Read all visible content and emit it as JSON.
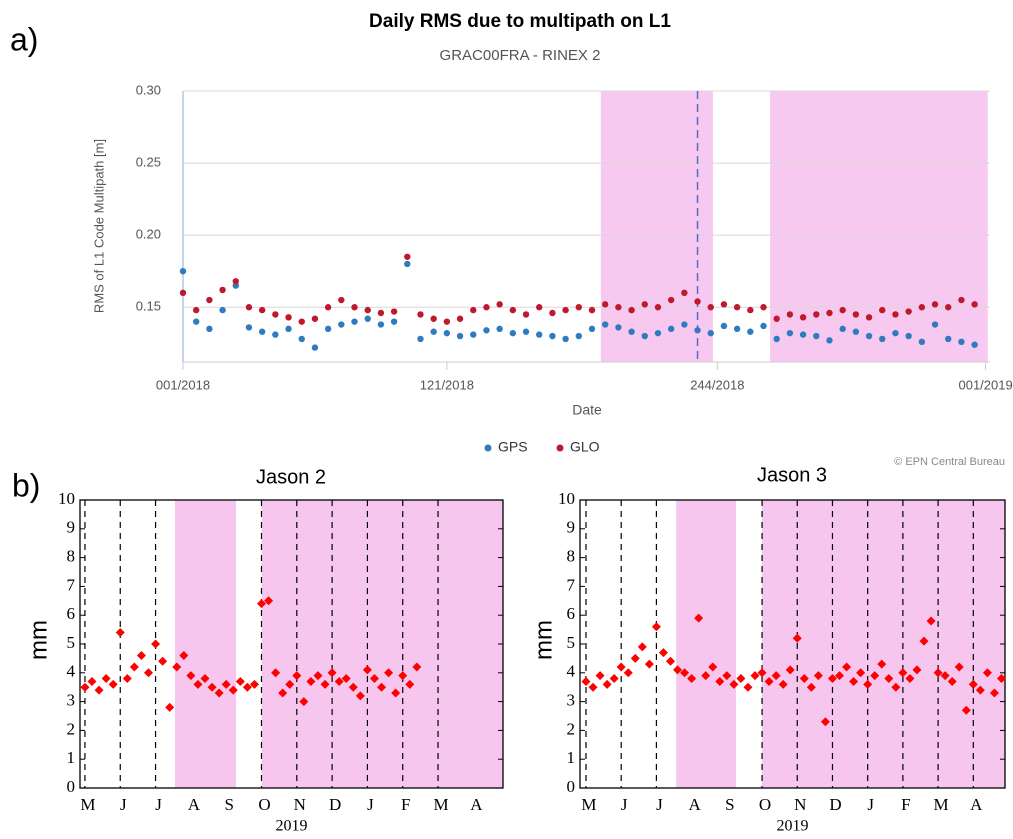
{
  "panel_labels": [
    "a)",
    "b)"
  ],
  "chart_data": [
    {
      "type": "scatter",
      "title": "Daily RMS due to multipath on L1",
      "subtitle": "GRAC00FRA - RINEX 2",
      "xlabel": "Date",
      "ylabel": "RMS of L1 Code Multipath [m]",
      "credit": "© EPN Central Bureau",
      "frame": false,
      "grid": true,
      "marker": "circle",
      "xlim": [
        0,
        367
      ],
      "ylim": [
        0.112,
        0.3
      ],
      "xticks": [
        {
          "value": 0,
          "label": "001/2018"
        },
        {
          "value": 120,
          "label": "121/2018"
        },
        {
          "value": 243,
          "label": "244/2018"
        },
        {
          "value": 365,
          "label": "001/2019"
        }
      ],
      "yticks": [
        0.15,
        {
          "value": 0.2,
          "label": "0.20"
        },
        0.25,
        {
          "value": 0.3,
          "label": "0.30"
        }
      ],
      "shaded_ranges": [
        [
          190,
          241
        ],
        [
          267,
          366
        ]
      ],
      "shade_color": "#f8c9f0",
      "vlines": [
        234
      ],
      "vline_color": "#4a6fc4",
      "x": [
        0,
        6,
        12,
        18,
        24,
        30,
        36,
        42,
        48,
        54,
        60,
        66,
        72,
        78,
        84,
        90,
        96,
        102,
        108,
        114,
        120,
        126,
        132,
        138,
        144,
        150,
        156,
        162,
        168,
        174,
        180,
        186,
        192,
        198,
        204,
        210,
        216,
        222,
        228,
        234,
        240,
        246,
        252,
        258,
        264,
        270,
        276,
        282,
        288,
        294,
        300,
        306,
        312,
        318,
        324,
        330,
        336,
        342,
        348,
        354,
        360
      ],
      "series": [
        {
          "name": "GPS",
          "color": "#2f7bbf",
          "values": [
            0.175,
            0.14,
            0.135,
            0.148,
            0.165,
            0.136,
            0.133,
            0.131,
            0.135,
            0.128,
            0.122,
            0.135,
            0.138,
            0.14,
            0.142,
            0.138,
            0.14,
            0.18,
            0.128,
            0.133,
            0.132,
            0.13,
            0.131,
            0.134,
            0.135,
            0.132,
            0.133,
            0.131,
            0.13,
            0.128,
            0.13,
            0.135,
            0.138,
            0.136,
            0.133,
            0.13,
            0.132,
            0.135,
            0.138,
            0.134,
            0.132,
            0.137,
            0.135,
            0.133,
            0.137,
            0.128,
            0.132,
            0.131,
            0.13,
            0.127,
            0.135,
            0.133,
            0.13,
            0.128,
            0.132,
            0.13,
            0.126,
            0.138,
            0.128,
            0.126,
            0.124
          ]
        },
        {
          "name": "GLO",
          "color": "#c0182c",
          "values": [
            0.16,
            0.148,
            0.155,
            0.162,
            0.168,
            0.15,
            0.148,
            0.145,
            0.143,
            0.14,
            0.142,
            0.15,
            0.155,
            0.15,
            0.148,
            0.146,
            0.147,
            0.185,
            0.145,
            0.142,
            0.14,
            0.142,
            0.148,
            0.15,
            0.152,
            0.148,
            0.145,
            0.15,
            0.146,
            0.148,
            0.15,
            0.148,
            0.152,
            0.15,
            0.148,
            0.152,
            0.15,
            0.155,
            0.16,
            0.154,
            0.15,
            0.152,
            0.15,
            0.148,
            0.15,
            0.142,
            0.145,
            0.143,
            0.145,
            0.146,
            0.148,
            0.145,
            0.143,
            0.148,
            0.145,
            0.147,
            0.15,
            0.152,
            0.15,
            0.155,
            0.152
          ]
        }
      ]
    },
    {
      "type": "scatter",
      "title": "Jason 2",
      "ylabel": "mm",
      "frame": true,
      "grid": false,
      "marker": "diamond",
      "xlim": [
        -0.14,
        11.84
      ],
      "ylim": [
        0,
        10
      ],
      "yticks": [
        0,
        1,
        2,
        3,
        4,
        5,
        6,
        7,
        8,
        9,
        10
      ],
      "categories": [
        "M",
        "J",
        "J",
        "A",
        "S",
        "O",
        "N",
        "D",
        "J",
        "F",
        "M",
        "A"
      ],
      "year_label": "2019",
      "shaded_ranges": [
        [
          2.55,
          4.28
        ],
        [
          5.01,
          11.84
        ]
      ],
      "shade_color": "#f7c6ef",
      "vlines": [
        0,
        1,
        2,
        5,
        6,
        7,
        8,
        9,
        10
      ],
      "vline_color": "#000000",
      "color": "#ff0000",
      "x": [
        0,
        0.2,
        0.4,
        0.6,
        0.8,
        1,
        1.2,
        1.4,
        1.6,
        1.8,
        2,
        2.2,
        2.4,
        2.6,
        2.8,
        3,
        3.2,
        3.4,
        3.6,
        3.8,
        4,
        4.2,
        4.4,
        4.6,
        4.8,
        5,
        5.2,
        5.4,
        5.6,
        5.8,
        6,
        6.2,
        6.4,
        6.6,
        6.8,
        7,
        7.2,
        7.4,
        7.6,
        7.8,
        8,
        8.2,
        8.4,
        8.6,
        8.8,
        9,
        9.2,
        9.4
      ],
      "values": [
        3.5,
        3.7,
        3.4,
        3.8,
        3.6,
        5.4,
        3.8,
        4.2,
        4.6,
        4,
        5,
        4.4,
        2.8,
        4.2,
        4.6,
        3.9,
        3.6,
        3.8,
        3.5,
        3.3,
        3.6,
        3.4,
        3.7,
        3.5,
        3.6,
        6.4,
        6.5,
        4,
        3.3,
        3.6,
        3.9,
        3,
        3.7,
        3.9,
        3.6,
        4,
        3.7,
        3.8,
        3.5,
        3.2,
        4.1,
        3.8,
        3.5,
        4,
        3.3,
        3.9,
        3.6,
        4.2
      ]
    },
    {
      "type": "scatter",
      "title": "Jason 3",
      "ylabel": "mm",
      "frame": true,
      "grid": false,
      "marker": "diamond",
      "xlim": [
        -0.17,
        11.9
      ],
      "ylim": [
        0,
        10
      ],
      "yticks": [
        0,
        1,
        2,
        3,
        4,
        5,
        6,
        7,
        8,
        9,
        10
      ],
      "categories": [
        "M",
        "J",
        "J",
        "A",
        "S",
        "O",
        "N",
        "D",
        "J",
        "F",
        "M",
        "A"
      ],
      "year_label": "2019",
      "shaded_ranges": [
        [
          2.56,
          4.26
        ],
        [
          5,
          11.9
        ]
      ],
      "shade_color": "#f7c6ef",
      "vlines": [
        0,
        1,
        2,
        5,
        6,
        7,
        8,
        9,
        10,
        11
      ],
      "vline_color": "#000000",
      "color": "#ff0000",
      "x": [
        0,
        0.2,
        0.4,
        0.6,
        0.8,
        1,
        1.2,
        1.4,
        1.6,
        1.8,
        2,
        2.2,
        2.4,
        2.6,
        2.8,
        3,
        3.2,
        3.4,
        3.6,
        3.8,
        4,
        4.2,
        4.4,
        4.6,
        4.8,
        5,
        5.2,
        5.4,
        5.6,
        5.8,
        6,
        6.2,
        6.4,
        6.6,
        6.8,
        7,
        7.2,
        7.4,
        7.6,
        7.8,
        8,
        8.2,
        8.4,
        8.6,
        8.8,
        9,
        9.2,
        9.4,
        9.6,
        9.8,
        10,
        10.2,
        10.4,
        10.6,
        10.8,
        11,
        11.2,
        11.4,
        11.6,
        11.8
      ],
      "values": [
        3.7,
        3.5,
        3.9,
        3.6,
        3.8,
        4.2,
        4,
        4.5,
        4.9,
        4.3,
        5.6,
        4.7,
        4.4,
        4.1,
        4,
        3.8,
        5.9,
        3.9,
        4.2,
        3.7,
        3.9,
        3.6,
        3.8,
        3.5,
        3.9,
        4,
        3.7,
        3.9,
        3.6,
        4.1,
        5.2,
        3.8,
        3.5,
        3.9,
        2.3,
        3.8,
        3.9,
        4.2,
        3.7,
        4,
        3.6,
        3.9,
        4.3,
        3.8,
        3.5,
        4,
        3.8,
        4.1,
        5.1,
        5.8,
        4,
        3.9,
        3.7,
        4.2,
        2.7,
        3.6,
        3.4,
        4,
        3.3,
        3.8
      ]
    }
  ]
}
